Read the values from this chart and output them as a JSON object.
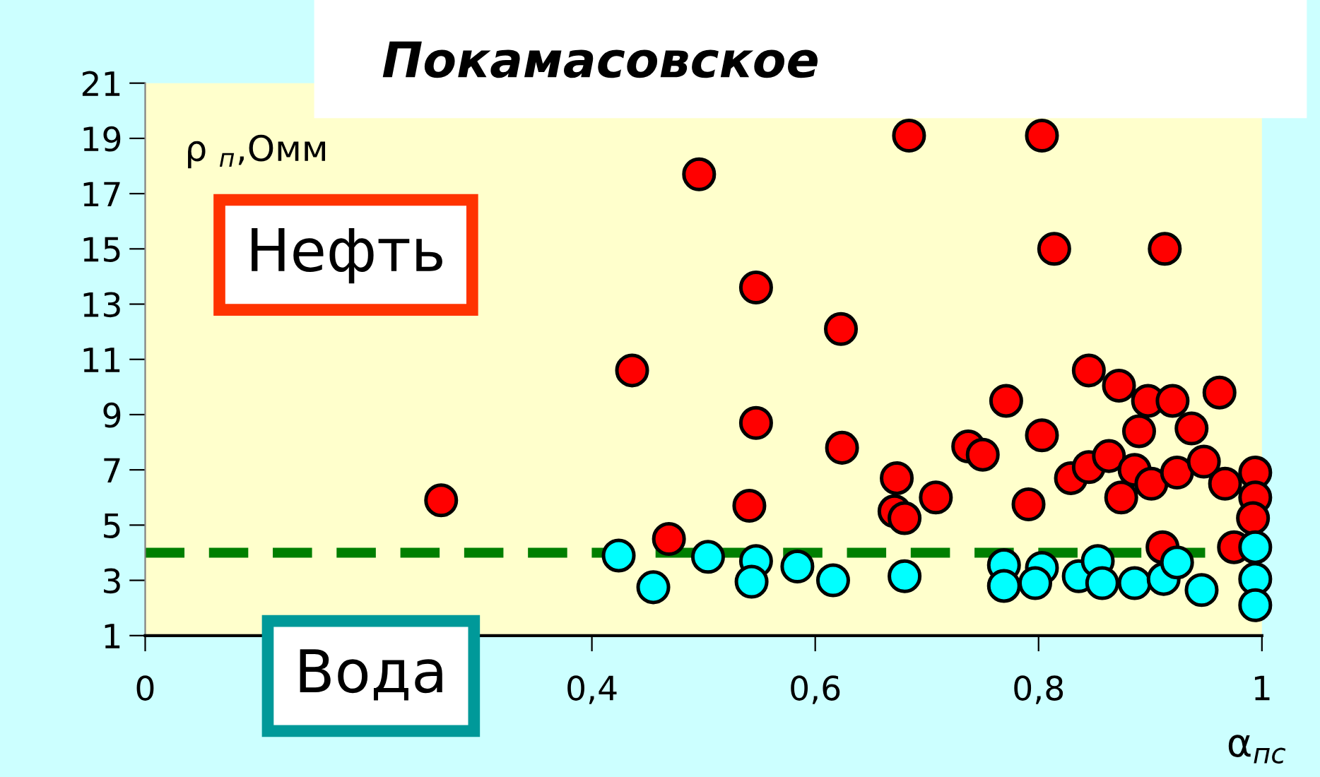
{
  "chart_data": {
    "type": "scatter",
    "title": "Покамасовское",
    "xlabel": "α$_{пс}$",
    "ylabel": "ρ $_{п}$,Омм",
    "annotations": [
      "Нефть",
      "Вода"
    ],
    "marker": "circle",
    "grid": false,
    "xlim": [
      0,
      1
    ],
    "xticks": [
      0,
      {
        "value": 0.4,
        "label": "0,4"
      },
      {
        "value": 0.6,
        "label": "0,6"
      },
      {
        "value": 0.8,
        "label": "0,8"
      },
      1
    ],
    "ylim": [
      1,
      21
    ],
    "yticks": [
      1,
      3,
      5,
      7,
      9,
      11,
      13,
      15,
      17,
      19,
      21
    ],
    "ref_lines": [
      {
        "axis": "y",
        "value": 4,
        "color": "#007f00",
        "line_style": "dashed"
      }
    ],
    "series": [
      {
        "color": "#ff0000",
        "x": [
          0.265,
          0.436,
          0.469,
          0.496,
          0.547,
          0.547,
          0.541,
          0.623,
          0.624,
          0.673,
          0.708,
          0.671,
          0.68,
          0.737,
          0.75,
          0.684,
          0.803,
          0.814,
          0.913,
          0.845,
          0.872,
          0.898,
          0.92,
          0.962,
          0.771,
          0.89,
          0.937,
          0.803,
          0.829,
          0.845,
          0.863,
          0.886,
          0.901,
          0.924,
          0.948,
          0.967,
          0.874,
          0.791,
          0.994,
          0.994,
          0.992,
          0.911,
          0.975
        ],
        "values": [
          5.9,
          10.6,
          4.5,
          17.7,
          13.6,
          8.7,
          5.7,
          12.1,
          7.8,
          6.7,
          6.0,
          5.5,
          5.25,
          7.85,
          7.55,
          19.1,
          19.1,
          15.0,
          15.0,
          10.6,
          10.05,
          9.5,
          9.5,
          9.8,
          9.5,
          8.4,
          8.5,
          8.25,
          6.7,
          7.1,
          7.5,
          7.0,
          6.5,
          6.9,
          7.3,
          6.5,
          6.0,
          5.75,
          6.9,
          6.0,
          5.25,
          4.2,
          4.2
        ]
      },
      {
        "color": "#00ffff",
        "x": [
          0.424,
          0.455,
          0.504,
          0.547,
          0.543,
          0.584,
          0.616,
          0.68,
          0.769,
          0.769,
          0.803,
          0.797,
          0.836,
          0.853,
          0.857,
          0.886,
          0.912,
          0.924,
          0.946,
          0.994,
          0.994,
          0.994
        ],
        "values": [
          3.9,
          2.75,
          3.85,
          3.7,
          2.95,
          3.5,
          3.0,
          3.15,
          3.55,
          2.8,
          3.45,
          2.9,
          3.15,
          3.7,
          2.9,
          2.9,
          3.05,
          3.65,
          2.65,
          4.2,
          3.05,
          2.1
        ]
      }
    ]
  }
}
